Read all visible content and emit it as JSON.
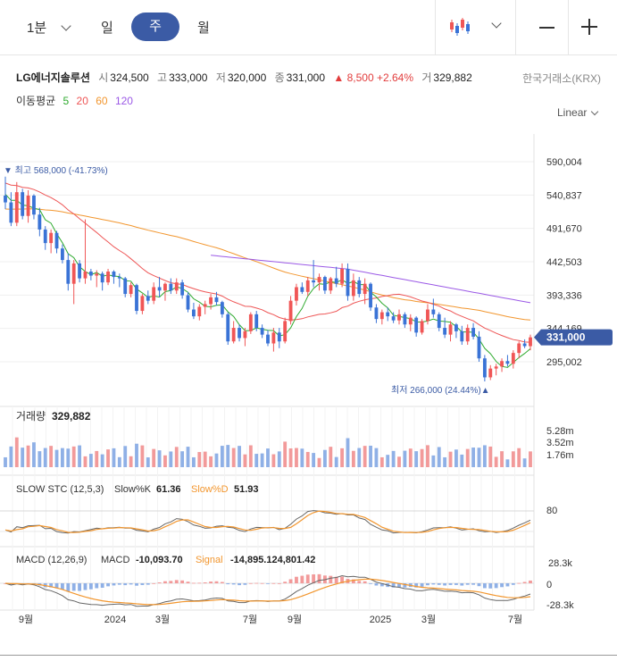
{
  "toolbar": {
    "interval": "1분",
    "tabs": [
      "일",
      "주",
      "월"
    ],
    "active_tab": "주",
    "chart_type_icon": "candlestick-icon",
    "zoom_out_icon": "minus-icon",
    "zoom_in_icon": "plus-icon"
  },
  "stock": {
    "name": "LG에너지솔루션",
    "open_label": "시",
    "open": "324,500",
    "high_label": "고",
    "high": "333,000",
    "low_label": "저",
    "low": "320,000",
    "close_label": "종",
    "close": "331,000",
    "change": "▲ 8,500",
    "change_pct": "+2.64%",
    "volume_label": "거",
    "volume": "329,882",
    "exchange": "한국거래소(KRX)"
  },
  "ma": {
    "label": "이동평균",
    "periods": [
      {
        "value": "5",
        "color": "#2eaa2e"
      },
      {
        "value": "20",
        "color": "#ee5555"
      },
      {
        "value": "60",
        "color": "#f2962e"
      },
      {
        "value": "120",
        "color": "#9b59e6"
      }
    ]
  },
  "scale_mode": "Linear",
  "annotations": {
    "high": "▼ 최고 568,000 (-41.73%)",
    "low": "최저 266,000 (24.44%)▲"
  },
  "current_price_badge": "331,000",
  "price_axis": [
    "590,004",
    "540,837",
    "491,670",
    "442,503",
    "393,336",
    "344,169",
    "295,002"
  ],
  "volume_panel": {
    "label": "거래량",
    "value": "329,882",
    "ticks": [
      "5.28m",
      "3.52m",
      "1.76m"
    ]
  },
  "stoch_panel": {
    "label": "SLOW STC (12,5,3)",
    "k_label": "Slow%K",
    "k_value": "61.36",
    "d_label": "Slow%D",
    "d_value": "51.93",
    "tick": "80"
  },
  "macd_panel": {
    "label": "MACD (12,26,9)",
    "macd_label": "MACD",
    "macd_value": "-10,093.70",
    "signal_label": "Signal",
    "signal_value": "-14,895.124,801.42",
    "ticks": [
      "28.3k",
      "0",
      "-28.3k"
    ]
  },
  "time_axis": [
    "9월",
    "2024",
    "3월",
    "7월",
    "9월",
    "2025",
    "3월",
    "7월"
  ],
  "colors": {
    "up": "#f05656",
    "down": "#3a73d6",
    "badge": "#3b5ba5",
    "ma5": "#2eaa2e",
    "ma20": "#ee5555",
    "ma60": "#f2962e",
    "ma120": "#9b59e6",
    "signal": "#f2962e"
  },
  "chart_data": {
    "type": "candlestick",
    "ohlc": [
      [
        540000,
        568000,
        520000,
        530000
      ],
      [
        530000,
        545000,
        495000,
        500000
      ],
      [
        500000,
        560000,
        495000,
        545000
      ],
      [
        545000,
        550000,
        505000,
        510000
      ],
      [
        510000,
        548000,
        500000,
        540000
      ],
      [
        540000,
        542000,
        505000,
        512000
      ],
      [
        512000,
        522000,
        480000,
        490000
      ],
      [
        490000,
        495000,
        460000,
        470000
      ],
      [
        470000,
        490000,
        455000,
        485000
      ],
      [
        485000,
        488000,
        455000,
        462000
      ],
      [
        462000,
        468000,
        440000,
        445000
      ],
      [
        445000,
        455000,
        400000,
        410000
      ],
      [
        410000,
        445000,
        380000,
        440000
      ],
      [
        440000,
        445000,
        412000,
        418000
      ],
      [
        418000,
        505000,
        410000,
        428000
      ],
      [
        428000,
        432000,
        415000,
        422000
      ],
      [
        422000,
        430000,
        405000,
        425000
      ],
      [
        425000,
        428000,
        400000,
        412000
      ],
      [
        412000,
        432000,
        408000,
        428000
      ],
      [
        428000,
        430000,
        410000,
        420000
      ],
      [
        420000,
        425000,
        405000,
        418000
      ],
      [
        418000,
        420000,
        390000,
        395000
      ],
      [
        395000,
        412000,
        390000,
        408000
      ],
      [
        408000,
        410000,
        365000,
        370000
      ],
      [
        370000,
        395000,
        365000,
        392000
      ],
      [
        392000,
        400000,
        380000,
        385000
      ],
      [
        385000,
        412000,
        380000,
        405000
      ],
      [
        405000,
        420000,
        390000,
        400000
      ],
      [
        400000,
        412000,
        385000,
        410000
      ],
      [
        410000,
        418000,
        395000,
        400000
      ],
      [
        400000,
        418000,
        395000,
        412000
      ],
      [
        412000,
        416000,
        388000,
        393000
      ],
      [
        393000,
        398000,
        368000,
        372000
      ],
      [
        372000,
        382000,
        358000,
        362000
      ],
      [
        362000,
        380000,
        356000,
        376000
      ],
      [
        376000,
        385000,
        365000,
        380000
      ],
      [
        380000,
        395000,
        372000,
        390000
      ],
      [
        390000,
        398000,
        378000,
        383000
      ],
      [
        383000,
        385000,
        360000,
        365000
      ],
      [
        365000,
        368000,
        320000,
        325000
      ],
      [
        325000,
        355000,
        322000,
        345000
      ],
      [
        345000,
        350000,
        325000,
        330000
      ],
      [
        330000,
        345000,
        318000,
        340000
      ],
      [
        340000,
        368000,
        336000,
        365000
      ],
      [
        365000,
        370000,
        340000,
        345000
      ],
      [
        345000,
        350000,
        330000,
        335000
      ],
      [
        335000,
        342000,
        318000,
        322000
      ],
      [
        322000,
        345000,
        310000,
        338000
      ],
      [
        338000,
        345000,
        315000,
        325000
      ],
      [
        325000,
        360000,
        322000,
        355000
      ],
      [
        355000,
        392000,
        350000,
        385000
      ],
      [
        385000,
        410000,
        378000,
        405000
      ],
      [
        405000,
        412000,
        395000,
        398000
      ],
      [
        398000,
        420000,
        392000,
        415000
      ],
      [
        415000,
        445000,
        405000,
        412000
      ],
      [
        412000,
        425000,
        400000,
        420000
      ],
      [
        420000,
        422000,
        395000,
        400000
      ],
      [
        400000,
        420000,
        395000,
        418000
      ],
      [
        418000,
        435000,
        405000,
        410000
      ],
      [
        410000,
        440000,
        405000,
        432000
      ],
      [
        432000,
        440000,
        385000,
        392000
      ],
      [
        392000,
        425000,
        385000,
        415000
      ],
      [
        415000,
        420000,
        390000,
        395000
      ],
      [
        395000,
        418000,
        380000,
        410000
      ],
      [
        410000,
        412000,
        370000,
        375000
      ],
      [
        375000,
        380000,
        352000,
        358000
      ],
      [
        358000,
        372000,
        350000,
        368000
      ],
      [
        368000,
        375000,
        355000,
        362000
      ],
      [
        362000,
        368000,
        352000,
        356000
      ],
      [
        356000,
        372000,
        350000,
        365000
      ],
      [
        365000,
        368000,
        345000,
        350000
      ],
      [
        350000,
        365000,
        340000,
        360000
      ],
      [
        360000,
        362000,
        332000,
        338000
      ],
      [
        338000,
        358000,
        335000,
        355000
      ],
      [
        355000,
        380000,
        350000,
        372000
      ],
      [
        372000,
        388000,
        360000,
        365000
      ],
      [
        365000,
        368000,
        340000,
        345000
      ],
      [
        345000,
        360000,
        330000,
        335000
      ],
      [
        335000,
        355000,
        325000,
        350000
      ],
      [
        350000,
        352000,
        330000,
        340000
      ],
      [
        340000,
        348000,
        320000,
        325000
      ],
      [
        325000,
        350000,
        320000,
        345000
      ],
      [
        345000,
        352000,
        328000,
        332000
      ],
      [
        332000,
        340000,
        295000,
        300000
      ],
      [
        300000,
        305000,
        266000,
        272000
      ],
      [
        272000,
        290000,
        268000,
        285000
      ],
      [
        285000,
        292000,
        275000,
        288000
      ],
      [
        288000,
        300000,
        280000,
        296000
      ],
      [
        296000,
        305000,
        288000,
        292000
      ],
      [
        292000,
        312000,
        285000,
        308000
      ],
      [
        308000,
        325000,
        300000,
        322000
      ],
      [
        322000,
        328000,
        315000,
        318000
      ],
      [
        318000,
        335000,
        312000,
        331000
      ]
    ],
    "volume_max": 5280000,
    "y_range": [
      266000,
      590004
    ]
  }
}
